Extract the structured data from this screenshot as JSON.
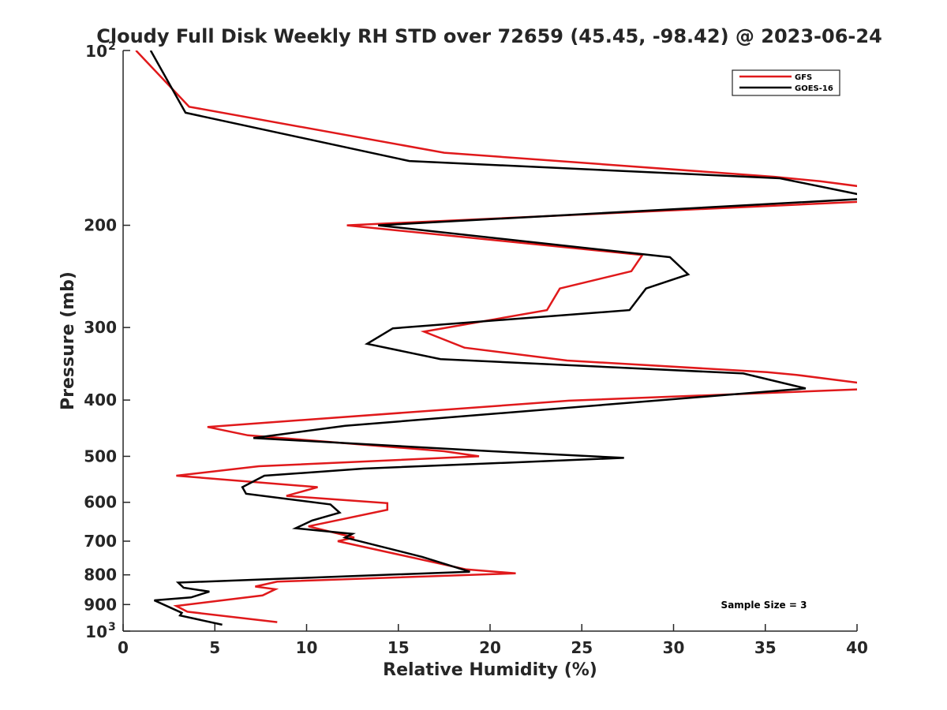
{
  "chart_data": {
    "type": "line",
    "title": "Cloudy Full Disk Weekly RH STD over 72659 (45.45, -98.42) @ 2023-06-24",
    "xlabel": "Relative Humidity (%)",
    "ylabel": "Pressure (mb)",
    "xlim": [
      0,
      40
    ],
    "ylim": [
      100,
      1000
    ],
    "yscale": "log",
    "y_reversed": true,
    "x_ticks": [
      0,
      5,
      10,
      15,
      20,
      25,
      30,
      35,
      40
    ],
    "x_tick_labels": [
      "0",
      "5",
      "10",
      "15",
      "20",
      "25",
      "30",
      "35",
      "40"
    ],
    "y_ticks": [
      200,
      300,
      400,
      500,
      600,
      700,
      800,
      900
    ],
    "y_tick_labels": [
      "200",
      "300",
      "400",
      "500",
      "600",
      "700",
      "800",
      "900"
    ],
    "y_end_ticks": [
      {
        "value": 100,
        "base": "10",
        "exp": "2"
      },
      {
        "value": 1000,
        "base": "10",
        "exp": "3"
      }
    ],
    "grid": false,
    "legend_position": "top-right",
    "annotation": "Sample Size = 3",
    "series": [
      {
        "name": "GFS",
        "color": "#e0191b",
        "points": [
          [
            0.7,
            100
          ],
          [
            3.6,
            125
          ],
          [
            17.5,
            150
          ],
          [
            35.5,
            165
          ],
          [
            38,
            168
          ],
          [
            40.5,
            172
          ],
          [
            40.5,
            182
          ],
          [
            12.2,
            200
          ],
          [
            28.3,
            225
          ],
          [
            27.7,
            240
          ],
          [
            23.8,
            257
          ],
          [
            23.1,
            280
          ],
          [
            16.4,
            305
          ],
          [
            18.6,
            325
          ],
          [
            24.2,
            342
          ],
          [
            35.1,
            358
          ],
          [
            36.7,
            362
          ],
          [
            40.5,
            375
          ],
          [
            40.5,
            383
          ],
          [
            24.3,
            401
          ],
          [
            4.6,
            445
          ],
          [
            6.8,
            460
          ],
          [
            17.5,
            490
          ],
          [
            19.4,
            500
          ],
          [
            7.4,
            520
          ],
          [
            2.9,
            540
          ],
          [
            10.6,
            565
          ],
          [
            8.9,
            585
          ],
          [
            14.4,
            602
          ],
          [
            14.4,
            618
          ],
          [
            10.1,
            660
          ],
          [
            12.6,
            690
          ],
          [
            11.7,
            700
          ],
          [
            18.7,
            783
          ],
          [
            21.4,
            795
          ],
          [
            8.4,
            822
          ],
          [
            7.2,
            838
          ],
          [
            8.3,
            847
          ],
          [
            7.6,
            868
          ],
          [
            2.9,
            905
          ],
          [
            3.5,
            926
          ],
          [
            8.4,
            965
          ]
        ]
      },
      {
        "name": "GOES-16",
        "color": "#000000",
        "points": [
          [
            1.5,
            100
          ],
          [
            3.4,
            128
          ],
          [
            15.6,
            155
          ],
          [
            35.8,
            166
          ],
          [
            40.5,
            178
          ],
          [
            40.5,
            180
          ],
          [
            13.9,
            200
          ],
          [
            29.8,
            227
          ],
          [
            30.8,
            243
          ],
          [
            28.5,
            257
          ],
          [
            27.6,
            280
          ],
          [
            14.7,
            301
          ],
          [
            13.3,
            320
          ],
          [
            17.3,
            340
          ],
          [
            33.8,
            360
          ],
          [
            37.2,
            382
          ],
          [
            12.1,
            443
          ],
          [
            7.1,
            465
          ],
          [
            20.1,
            490
          ],
          [
            27.3,
            503
          ],
          [
            13.1,
            525
          ],
          [
            7.7,
            540
          ],
          [
            6.5,
            565
          ],
          [
            6.7,
            580
          ],
          [
            11.3,
            605
          ],
          [
            11.8,
            625
          ],
          [
            10.3,
            645
          ],
          [
            9.4,
            665
          ],
          [
            12.5,
            680
          ],
          [
            12.1,
            690
          ],
          [
            16.3,
            745
          ],
          [
            18.9,
            790
          ],
          [
            3.0,
            825
          ],
          [
            3.3,
            842
          ],
          [
            4.7,
            855
          ],
          [
            3.7,
            875
          ],
          [
            1.7,
            885
          ],
          [
            3.2,
            930
          ],
          [
            3.1,
            940
          ],
          [
            5.4,
            975
          ]
        ]
      }
    ]
  }
}
